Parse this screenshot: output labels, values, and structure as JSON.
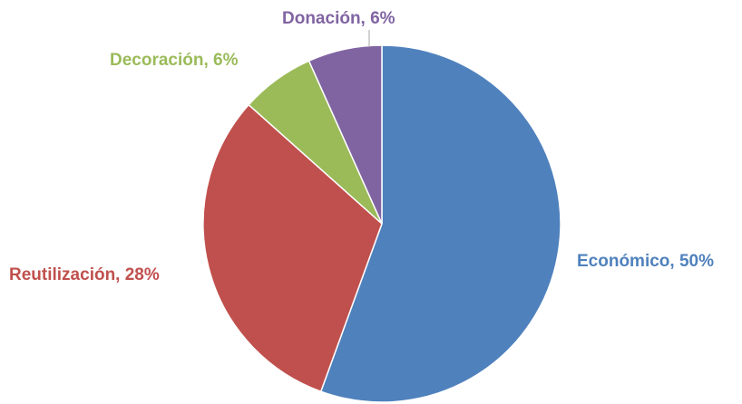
{
  "chart_data": {
    "type": "pie",
    "title": "",
    "start_angle_deg": 0,
    "direction": "clockwise",
    "slices": [
      {
        "label": "Económico, 50%",
        "name": "Económico",
        "value": 55.6,
        "color": "#4f81bd"
      },
      {
        "label": "Reutilización, 28%",
        "name": "Reutilización",
        "value": 31.1,
        "color": "#c0504d"
      },
      {
        "label": "Decoración, 6%",
        "name": "Decoración",
        "value": 6.7,
        "color": "#9bbb59"
      },
      {
        "label": "Donación, 6%",
        "name": "Donación",
        "value": 6.7,
        "color": "#8064a2"
      }
    ],
    "legend": "none"
  }
}
